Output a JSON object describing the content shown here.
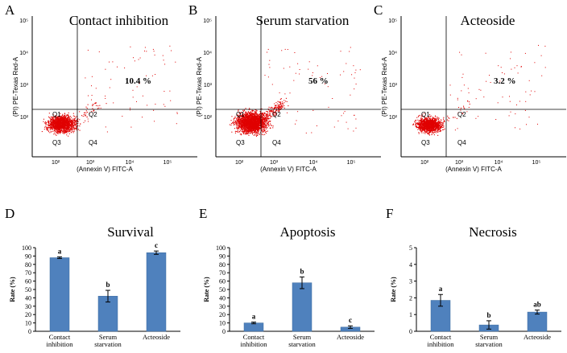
{
  "panels_flow": [
    {
      "letter": "A",
      "title": "Contact inhibition",
      "percent": "10.4 %",
      "quadrants": [
        "Q1",
        "Q2",
        "Q3",
        "Q4"
      ],
      "xlabel": "(Annexin V) FITC-A",
      "ylabel": "(PI) PE-Texas Red-A"
    },
    {
      "letter": "B",
      "title": "Serum starvation",
      "percent": "56 %",
      "quadrants": [
        "Q1",
        "Q2",
        "Q3",
        "Q4"
      ],
      "xlabel": "(Annexin V) FITC-A",
      "ylabel": "(PI) PE-Texas Red-A"
    },
    {
      "letter": "C",
      "title": "Acteoside",
      "percent": "3.2 %",
      "quadrants": [
        "Q1",
        "Q2",
        "Q3",
        "Q4"
      ],
      "xlabel": "(Annexin V) FITC-A",
      "ylabel": "(PI) PE-Texas Red-A"
    }
  ],
  "flow_ticks": {
    "x": [
      "10²",
      "10³",
      "10⁴",
      "10⁵"
    ],
    "y": [
      "10²",
      "10³",
      "10⁴",
      "10⁵"
    ]
  },
  "colors": {
    "dots": "#e00000",
    "bar": "#4f81bd",
    "bar_edge": "#3a6a9f",
    "axis": "#000000"
  },
  "chart_data": [
    {
      "type": "bar",
      "letter": "D",
      "title": "Survival",
      "ylabel": "Rate (%)",
      "categories": [
        [
          "Contact",
          "inhibition"
        ],
        [
          "Serum",
          "starvation"
        ],
        [
          "Acteoside"
        ]
      ],
      "values": [
        88,
        42,
        94
      ],
      "errors": [
        1,
        7,
        2
      ],
      "letters": [
        "a",
        "b",
        "c"
      ],
      "ylim": [
        0,
        100
      ],
      "yticks": [
        0,
        10,
        20,
        30,
        40,
        50,
        60,
        70,
        80,
        90,
        100
      ]
    },
    {
      "type": "bar",
      "letter": "E",
      "title": "Apoptosis",
      "ylabel": "Rate (%)",
      "categories": [
        [
          "Contact",
          "inhibition"
        ],
        [
          "Serum",
          "starvation"
        ],
        [
          "Acteoside"
        ]
      ],
      "values": [
        10,
        58,
        5
      ],
      "errors": [
        1,
        7,
        1.5
      ],
      "letters": [
        "a",
        "b",
        "c"
      ],
      "ylim": [
        0,
        100
      ],
      "yticks": [
        0,
        10,
        20,
        30,
        40,
        50,
        60,
        70,
        80,
        90,
        100
      ]
    },
    {
      "type": "bar",
      "letter": "F",
      "title": "Necrosis",
      "ylabel": "Rate (%)",
      "categories": [
        [
          "Contact",
          "inhibition"
        ],
        [
          "Serum",
          "starvation"
        ],
        [
          "Acteoside"
        ]
      ],
      "values": [
        1.85,
        0.38,
        1.15
      ],
      "errors": [
        0.35,
        0.25,
        0.12
      ],
      "letters": [
        "a",
        "b",
        "ab"
      ],
      "ylim": [
        0,
        5
      ],
      "yticks": [
        0,
        1,
        2,
        3,
        4,
        5
      ]
    }
  ]
}
